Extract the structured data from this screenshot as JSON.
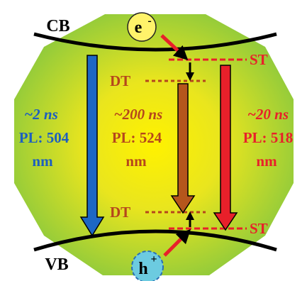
{
  "bands": {
    "conduction": "CB",
    "valence": "VB"
  },
  "carriers": {
    "electron": {
      "symbol": "e",
      "charge": "-"
    },
    "hole": {
      "symbol": "h",
      "charge": "+"
    }
  },
  "traps": [
    {
      "label": "ST"
    },
    {
      "label": "DT"
    },
    {
      "label": "DT"
    },
    {
      "label": "ST"
    }
  ],
  "transitions": [
    {
      "lifetime": "~2 ns",
      "pl": "PL: 504",
      "unit": "nm"
    },
    {
      "lifetime": "~200 ns",
      "pl": "PL: 524",
      "unit": "nm"
    },
    {
      "lifetime": "~20 ns",
      "pl": "PL: 518",
      "unit": "nm"
    }
  ]
}
